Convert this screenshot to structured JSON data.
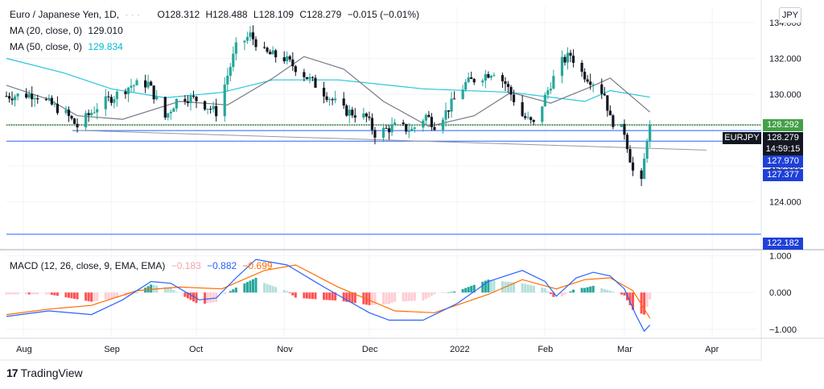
{
  "header": {
    "symbol": "Euro / Japanese Yen, 1D,",
    "open": "O128.312",
    "high": "H128.488",
    "low": "L128.109",
    "close": "C128.279",
    "change": "−0.015 (−0.01%)"
  },
  "ma20_label": "MA (20, close, 0)",
  "ma20_value": "129.010",
  "ma50_label": "MA (50, close, 0)",
  "ma50_value": "129.834",
  "macd_label": "MACD (12, 26, close, 9, EMA, EMA)",
  "macd_hist_value": "−0.183",
  "macd_value": "−0.882",
  "macd_signal_value": "−0.699",
  "currency_button": "JPY",
  "symbol_tag": "EURJPY",
  "price_tag": "128.279",
  "countdown": "14:59:15",
  "level_tags": [
    "128.292",
    "127.970",
    "127.377",
    "122.182"
  ],
  "brand": "TradingView",
  "colors": {
    "up": "#26a69a",
    "down": "#131722",
    "ma20": "#787b86",
    "ma50": "#26c6da",
    "macd": "#2962ff",
    "signal": "#ff6d00",
    "hist_pos_strong": "#26a69a",
    "hist_pos_weak": "#b2dfdb",
    "hist_neg_strong": "#ff5252",
    "hist_neg_weak": "#ffcdd2",
    "hline_green": "#4caf50",
    "hline_blue": "#2962ff",
    "trendline": "#9598a1"
  },
  "chart_data": {
    "type": "candlestick",
    "price_axis": {
      "ticks": [
        "134.000",
        "132.000",
        "130.000",
        "126.000",
        "124.000"
      ],
      "ylim": [
        121.5,
        134.9
      ]
    },
    "macd_axis": {
      "ticks": [
        "1.000",
        "0.000",
        "−1.000"
      ],
      "ylim": [
        -1.2,
        1.1
      ]
    },
    "x_ticks": [
      "Aug",
      "Sep",
      "Oct",
      "Nov",
      "Dec",
      "2022",
      "Feb",
      "Mar",
      "Apr"
    ],
    "horizontal_levels": [
      128.292,
      127.97,
      127.377,
      122.182
    ],
    "trendline": {
      "from": [
        "2021-08-20",
        127.98
      ],
      "to": [
        "2022-03-30",
        126.88
      ]
    },
    "anchors": [
      [
        "2021-07-26",
        129.9
      ],
      [
        "2021-08-05",
        130.0
      ],
      [
        "2021-08-16",
        128.9
      ],
      [
        "2021-08-20",
        128.2
      ],
      [
        "2021-08-27",
        129.3
      ],
      [
        "2021-09-08",
        130.5
      ],
      [
        "2021-09-14",
        130.6
      ],
      [
        "2021-09-20",
        128.7
      ],
      [
        "2021-09-25",
        129.9
      ],
      [
        "2021-10-01",
        129.7
      ],
      [
        "2021-10-08",
        129.0
      ],
      [
        "2021-10-15",
        132.6
      ],
      [
        "2021-10-20",
        133.3
      ],
      [
        "2021-10-25",
        132.3
      ],
      [
        "2021-11-01",
        132.0
      ],
      [
        "2021-11-08",
        131.1
      ],
      [
        "2021-11-15",
        130.1
      ],
      [
        "2021-11-22",
        129.1
      ],
      [
        "2021-11-30",
        128.7
      ],
      [
        "2021-12-03",
        127.8
      ],
      [
        "2021-12-10",
        128.2
      ],
      [
        "2021-12-16",
        128.0
      ],
      [
        "2021-12-21",
        128.8
      ],
      [
        "2021-12-24",
        128.3
      ],
      [
        "2021-12-28",
        129.0
      ],
      [
        "2022-01-04",
        130.6
      ],
      [
        "2022-01-11",
        131.1
      ],
      [
        "2022-01-14",
        131.3
      ],
      [
        "2022-01-18",
        130.6
      ],
      [
        "2022-01-24",
        128.8
      ],
      [
        "2022-01-28",
        128.3
      ],
      [
        "2022-02-03",
        130.6
      ],
      [
        "2022-02-07",
        131.8
      ],
      [
        "2022-02-10",
        132.2
      ],
      [
        "2022-02-14",
        131.2
      ],
      [
        "2022-02-18",
        130.7
      ],
      [
        "2022-02-22",
        130.0
      ],
      [
        "2022-02-24",
        128.6
      ],
      [
        "2022-03-01",
        127.9
      ],
      [
        "2022-03-04",
        125.7
      ],
      [
        "2022-03-07",
        125.0
      ],
      [
        "2022-03-09",
        127.6
      ],
      [
        "2022-03-10",
        128.279
      ]
    ],
    "ma20": [
      [
        "2021-07-26",
        130.5
      ],
      [
        "2021-08-10",
        129.7
      ],
      [
        "2021-08-20",
        128.8
      ],
      [
        "2021-09-05",
        128.6
      ],
      [
        "2021-09-25",
        129.6
      ],
      [
        "2021-10-12",
        129.4
      ],
      [
        "2021-10-28",
        130.9
      ],
      [
        "2021-11-08",
        132.1
      ],
      [
        "2021-11-22",
        131.4
      ],
      [
        "2021-12-06",
        129.6
      ],
      [
        "2021-12-22",
        128.2
      ],
      [
        "2022-01-07",
        128.8
      ],
      [
        "2022-01-20",
        130.1
      ],
      [
        "2022-02-03",
        129.5
      ],
      [
        "2022-02-17",
        130.4
      ],
      [
        "2022-02-24",
        130.9
      ],
      [
        "2022-03-10",
        129.0
      ]
    ],
    "ma50": [
      [
        "2021-07-26",
        132.0
      ],
      [
        "2021-08-15",
        131.2
      ],
      [
        "2021-09-01",
        130.3
      ],
      [
        "2021-09-20",
        129.8
      ],
      [
        "2021-10-10",
        130.1
      ],
      [
        "2021-10-28",
        130.8
      ],
      [
        "2021-11-20",
        130.8
      ],
      [
        "2021-12-20",
        130.3
      ],
      [
        "2022-01-20",
        130.1
      ],
      [
        "2022-02-15",
        129.6
      ],
      [
        "2022-02-24",
        130.2
      ],
      [
        "2022-03-10",
        129.834
      ]
    ],
    "macd": [
      [
        "2021-07-26",
        -0.65
      ],
      [
        "2021-08-10",
        -0.5
      ],
      [
        "2021-08-25",
        -0.6
      ],
      [
        "2021-09-05",
        -0.2
      ],
      [
        "2021-09-15",
        0.3
      ],
      [
        "2021-09-22",
        0.25
      ],
      [
        "2021-10-02",
        -0.2
      ],
      [
        "2021-10-08",
        -0.15
      ],
      [
        "2021-10-15",
        0.4
      ],
      [
        "2021-10-22",
        0.9
      ],
      [
        "2021-11-02",
        0.75
      ],
      [
        "2021-11-15",
        0.15
      ],
      [
        "2021-12-01",
        -0.55
      ],
      [
        "2021-12-08",
        -0.75
      ],
      [
        "2021-12-20",
        -0.75
      ],
      [
        "2022-01-01",
        -0.3
      ],
      [
        "2022-01-12",
        0.3
      ],
      [
        "2022-01-24",
        0.6
      ],
      [
        "2022-02-01",
        0.3
      ],
      [
        "2022-02-05",
        -0.1
      ],
      [
        "2022-02-12",
        0.4
      ],
      [
        "2022-02-18",
        0.55
      ],
      [
        "2022-02-24",
        0.45
      ],
      [
        "2022-03-01",
        0.1
      ],
      [
        "2022-03-05",
        -0.6
      ],
      [
        "2022-03-08",
        -1.05
      ],
      [
        "2022-03-10",
        -0.882
      ]
    ],
    "signal": [
      [
        "2021-07-26",
        -0.6
      ],
      [
        "2021-08-10",
        -0.45
      ],
      [
        "2021-08-25",
        -0.35
      ],
      [
        "2021-09-10",
        0.05
      ],
      [
        "2021-09-25",
        0.15
      ],
      [
        "2021-10-10",
        0.1
      ],
      [
        "2021-10-25",
        0.6
      ],
      [
        "2021-11-05",
        0.75
      ],
      [
        "2021-11-20",
        0.15
      ],
      [
        "2021-12-10",
        -0.5
      ],
      [
        "2021-12-24",
        -0.55
      ],
      [
        "2022-01-12",
        -0.05
      ],
      [
        "2022-01-24",
        0.35
      ],
      [
        "2022-02-05",
        0.1
      ],
      [
        "2022-02-15",
        0.35
      ],
      [
        "2022-02-24",
        0.4
      ],
      [
        "2022-03-04",
        0.05
      ],
      [
        "2022-03-10",
        -0.699
      ]
    ]
  }
}
